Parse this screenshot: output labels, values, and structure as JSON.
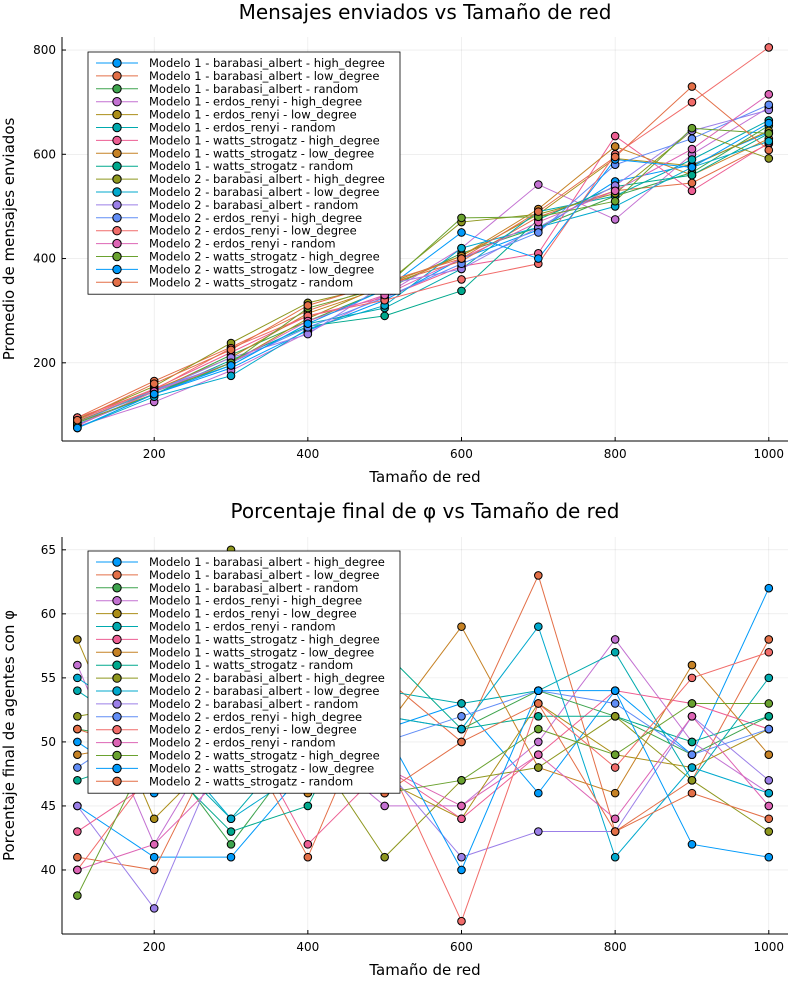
{
  "x": [
    100,
    200,
    300,
    400,
    500,
    600,
    700,
    800,
    900,
    1000
  ],
  "series_names": [
    "Modelo 1 - barabasi_albert - high_degree",
    "Modelo 1 - barabasi_albert - low_degree",
    "Modelo 1 - barabasi_albert - random",
    "Modelo 1 - erdos_renyi - high_degree",
    "Modelo 1 - erdos_renyi - low_degree",
    "Modelo 1 - erdos_renyi - random",
    "Modelo 1 - watts_strogatz - high_degree",
    "Modelo 1 - watts_strogatz - low_degree",
    "Modelo 1 - watts_strogatz - random",
    "Modelo 2 - barabasi_albert - high_degree",
    "Modelo 2 - barabasi_albert - low_degree",
    "Modelo 2 - barabasi_albert - random",
    "Modelo 2 - erdos_renyi - high_degree",
    "Modelo 2 - erdos_renyi - low_degree",
    "Modelo 2 - erdos_renyi - random",
    "Modelo 2 - watts_strogatz - high_degree",
    "Modelo 2 - watts_strogatz - low_degree",
    "Modelo 2 - watts_strogatz - random"
  ],
  "palette": [
    "#009AFA",
    "#E36F47",
    "#3EA44E",
    "#C371D2",
    "#AC8E18",
    "#00AAAE",
    "#ED5E93",
    "#C68225",
    "#00A98D",
    "#8E971E",
    "#00A9CD",
    "#9B7FE8",
    "#618DF6",
    "#F16C6A",
    "#DD64B5",
    "#6AA22F",
    "#009AFA",
    "#E36F47"
  ],
  "chart_data": [
    {
      "type": "line",
      "title": "Mensajes enviados vs Tamaño de red",
      "xlabel": "Tamaño de red",
      "ylabel": "Promedio de mensajes enviados",
      "xlim": [
        80,
        1025
      ],
      "ylim": [
        50,
        825
      ],
      "xticks": [
        200,
        400,
        600,
        800,
        1000
      ],
      "yticks": [
        200,
        400,
        600,
        800
      ],
      "legend_position": "top-left",
      "grid": true,
      "series": [
        {
          "name": "Modelo 1 - barabasi_albert - high_degree",
          "values": [
            82,
            140,
            190,
            262,
            320,
            400,
            455,
            548,
            580,
            642
          ]
        },
        {
          "name": "Modelo 1 - barabasi_albert - low_degree",
          "values": [
            95,
            165,
            230,
            300,
            350,
            395,
            480,
            530,
            545,
            620
          ]
        },
        {
          "name": "Modelo 1 - barabasi_albert - random",
          "values": [
            88,
            145,
            215,
            280,
            340,
            410,
            460,
            520,
            565,
            655
          ]
        },
        {
          "name": "Modelo 1 - erdos_renyi - high_degree",
          "values": [
            78,
            125,
            185,
            258,
            330,
            420,
            542,
            475,
            600,
            690
          ]
        },
        {
          "name": "Modelo 1 - erdos_renyi - low_degree",
          "values": [
            85,
            140,
            200,
            285,
            350,
            405,
            485,
            592,
            578,
            645
          ]
        },
        {
          "name": "Modelo 1 - erdos_renyi - random",
          "values": [
            80,
            145,
            195,
            275,
            305,
            380,
            490,
            520,
            590,
            665
          ]
        },
        {
          "name": "Modelo 1 - watts_strogatz - high_degree",
          "values": [
            90,
            150,
            220,
            290,
            325,
            385,
            410,
            635,
            530,
            622
          ]
        },
        {
          "name": "Modelo 1 - watts_strogatz - low_degree",
          "values": [
            87,
            148,
            210,
            295,
            345,
            405,
            495,
            615,
            560,
            630
          ]
        },
        {
          "name": "Modelo 1 - watts_strogatz - random",
          "values": [
            75,
            140,
            205,
            270,
            290,
            338,
            475,
            538,
            560,
            640
          ]
        },
        {
          "name": "Modelo 2 - barabasi_albert - high_degree",
          "values": [
            92,
            155,
            238,
            315,
            350,
            470,
            485,
            525,
            645,
            592
          ]
        },
        {
          "name": "Modelo 2 - barabasi_albert - low_degree",
          "values": [
            75,
            135,
            175,
            265,
            310,
            420,
            460,
            500,
            575,
            625
          ]
        },
        {
          "name": "Modelo 2 - barabasi_albert - random",
          "values": [
            80,
            145,
            210,
            255,
            350,
            380,
            460,
            540,
            645,
            685
          ]
        },
        {
          "name": "Modelo 2 - erdos_renyi - high_degree",
          "values": [
            85,
            148,
            200,
            268,
            325,
            390,
            450,
            580,
            630,
            695
          ]
        },
        {
          "name": "Modelo 2 - erdos_renyi - low_degree",
          "values": [
            95,
            148,
            228,
            290,
            320,
            360,
            390,
            600,
            700,
            805
          ]
        },
        {
          "name": "Modelo 2 - erdos_renyi - random",
          "values": [
            80,
            145,
            200,
            280,
            330,
            400,
            470,
            530,
            610,
            715
          ]
        },
        {
          "name": "Modelo 2 - watts_strogatz - high_degree",
          "values": [
            85,
            140,
            200,
            305,
            345,
            478,
            480,
            510,
            650,
            640
          ]
        },
        {
          "name": "Modelo 2 - watts_strogatz - low_degree",
          "values": [
            75,
            140,
            195,
            275,
            340,
            450,
            400,
            590,
            575,
            660
          ]
        },
        {
          "name": "Modelo 2 - watts_strogatz - random",
          "values": [
            90,
            160,
            225,
            310,
            355,
            400,
            490,
            595,
            730,
            608
          ]
        }
      ]
    },
    {
      "type": "line",
      "title": "Porcentaje final de φ vs Tamaño de red",
      "xlabel": "Tamaño de red",
      "ylabel": "Porcentaje final de agentes con φ",
      "xlim": [
        80,
        1025
      ],
      "ylim": [
        35,
        66
      ],
      "xticks": [
        200,
        400,
        600,
        800,
        1000
      ],
      "yticks": [
        40,
        45,
        50,
        55,
        60,
        65
      ],
      "legend_position": "top-left",
      "grid": true,
      "series": [
        {
          "name": "Modelo 1 - barabasi_albert - high_degree",
          "values": [
            45,
            41,
            41,
            48,
            51,
            53,
            46,
            54,
            49,
            62
          ]
        },
        {
          "name": "Modelo 1 - barabasi_albert - low_degree",
          "values": [
            41,
            40,
            52,
            41,
            55,
            50,
            63,
            43,
            47,
            58
          ]
        },
        {
          "name": "Modelo 1 - barabasi_albert - random",
          "values": [
            51,
            50,
            42,
            50,
            52,
            51,
            54,
            52,
            49,
            52
          ]
        },
        {
          "name": "Modelo 1 - erdos_renyi - high_degree",
          "values": [
            56,
            42,
            52,
            50,
            45,
            45,
            50,
            58,
            50,
            46
          ]
        },
        {
          "name": "Modelo 1 - erdos_renyi - low_degree",
          "values": [
            58,
            44,
            50,
            47,
            47,
            44,
            53,
            49,
            48,
            51
          ]
        },
        {
          "name": "Modelo 1 - erdos_renyi - random",
          "values": [
            54,
            50,
            44,
            51,
            54,
            53,
            54,
            57,
            47,
            55
          ]
        },
        {
          "name": "Modelo 1 - watts_strogatz - high_degree",
          "values": [
            43,
            47,
            53,
            42,
            48,
            44,
            49,
            54,
            53,
            51
          ]
        },
        {
          "name": "Modelo 1 - watts_strogatz - low_degree",
          "values": [
            49,
            50,
            49,
            46,
            51,
            59,
            48,
            46,
            56,
            49
          ]
        },
        {
          "name": "Modelo 1 - watts_strogatz - random",
          "values": [
            47,
            49,
            43,
            45,
            57,
            51,
            52,
            52,
            50,
            52
          ]
        },
        {
          "name": "Modelo 2 - barabasi_albert - high_degree",
          "values": [
            52,
            53,
            65,
            50,
            41,
            47,
            48,
            52,
            47,
            43
          ]
        },
        {
          "name": "Modelo 2 - barabasi_albert - low_degree",
          "values": [
            55,
            51,
            44,
            48,
            52,
            51,
            59,
            41,
            48,
            46
          ]
        },
        {
          "name": "Modelo 2 - barabasi_albert - random",
          "values": [
            45,
            37,
            51,
            49,
            48,
            41,
            43,
            43,
            52,
            47
          ]
        },
        {
          "name": "Modelo 2 - erdos_renyi - high_degree",
          "values": [
            48,
            52,
            47,
            52,
            50,
            52,
            54,
            53,
            49,
            51
          ]
        },
        {
          "name": "Modelo 2 - erdos_renyi - low_degree",
          "values": [
            40,
            48,
            50,
            52,
            49,
            36,
            53,
            48,
            55,
            57
          ]
        },
        {
          "name": "Modelo 2 - erdos_renyi - random",
          "values": [
            40,
            42,
            48,
            51,
            48,
            45,
            49,
            44,
            52,
            45
          ]
        },
        {
          "name": "Modelo 2 - watts_strogatz - high_degree",
          "values": [
            38,
            50,
            47,
            52,
            46,
            47,
            51,
            49,
            53,
            53
          ]
        },
        {
          "name": "Modelo 2 - watts_strogatz - low_degree",
          "values": [
            50,
            46,
            48,
            50,
            51,
            40,
            54,
            54,
            42,
            41
          ]
        },
        {
          "name": "Modelo 2 - watts_strogatz - random",
          "values": [
            51,
            49,
            50,
            48,
            46,
            50,
            53,
            43,
            46,
            44
          ]
        }
      ]
    }
  ]
}
